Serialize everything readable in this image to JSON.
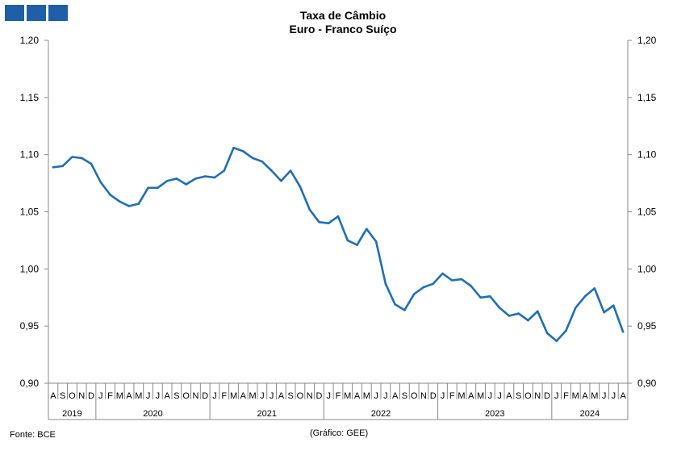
{
  "chart_data": {
    "type": "line",
    "title": "Taxa de Câmbio",
    "subtitle": "Euro - Franco Suíço",
    "ylim": [
      0.9,
      1.2
    ],
    "yticks": [
      "0,90",
      "0,95",
      "1,00",
      "1,05",
      "1,10",
      "1,15",
      "1,20"
    ],
    "yticks_right": [
      "0,90",
      "0,95",
      "1,00",
      "1,05",
      "1,10",
      "1,15",
      "1,20"
    ],
    "grid": false,
    "month_labels": [
      "A",
      "S",
      "O",
      "N",
      "D",
      "J",
      "F",
      "M",
      "A",
      "M",
      "J",
      "J",
      "A",
      "S",
      "O",
      "N",
      "D",
      "J",
      "F",
      "M",
      "A",
      "M",
      "J",
      "J",
      "A",
      "S",
      "O",
      "N",
      "D",
      "J",
      "F",
      "M",
      "A",
      "M",
      "J",
      "J",
      "A",
      "S",
      "O",
      "N",
      "D",
      "J",
      "F",
      "M",
      "A",
      "M",
      "J",
      "J",
      "A",
      "S",
      "O",
      "N",
      "D",
      "J",
      "F",
      "M",
      "A",
      "M",
      "J",
      "J",
      "A"
    ],
    "year_labels": [
      {
        "label": "2019",
        "start": 0,
        "end": 4
      },
      {
        "label": "2020",
        "start": 5,
        "end": 16
      },
      {
        "label": "2021",
        "start": 17,
        "end": 28
      },
      {
        "label": "2022",
        "start": 29,
        "end": 40
      },
      {
        "label": "2023",
        "start": 41,
        "end": 52
      },
      {
        "label": "2024",
        "start": 53,
        "end": 60
      }
    ],
    "series": [
      {
        "color": "#1f6fb5",
        "values": [
          1.089,
          1.09,
          1.098,
          1.097,
          1.092,
          1.076,
          1.065,
          1.059,
          1.055,
          1.057,
          1.071,
          1.071,
          1.077,
          1.079,
          1.074,
          1.079,
          1.081,
          1.08,
          1.086,
          1.106,
          1.103,
          1.097,
          1.094,
          1.086,
          1.077,
          1.086,
          1.072,
          1.052,
          1.041,
          1.04,
          1.046,
          1.025,
          1.021,
          1.035,
          1.024,
          0.987,
          0.969,
          0.964,
          0.978,
          0.984,
          0.987,
          0.996,
          0.99,
          0.991,
          0.985,
          0.975,
          0.976,
          0.966,
          0.959,
          0.961,
          0.955,
          0.963,
          0.944,
          0.937,
          0.946,
          0.966,
          0.976,
          0.983,
          0.962,
          0.968,
          0.945
        ]
      }
    ]
  },
  "footer": {
    "source": "Fonte: BCE",
    "credit": "(Gráfico: GEE)"
  }
}
